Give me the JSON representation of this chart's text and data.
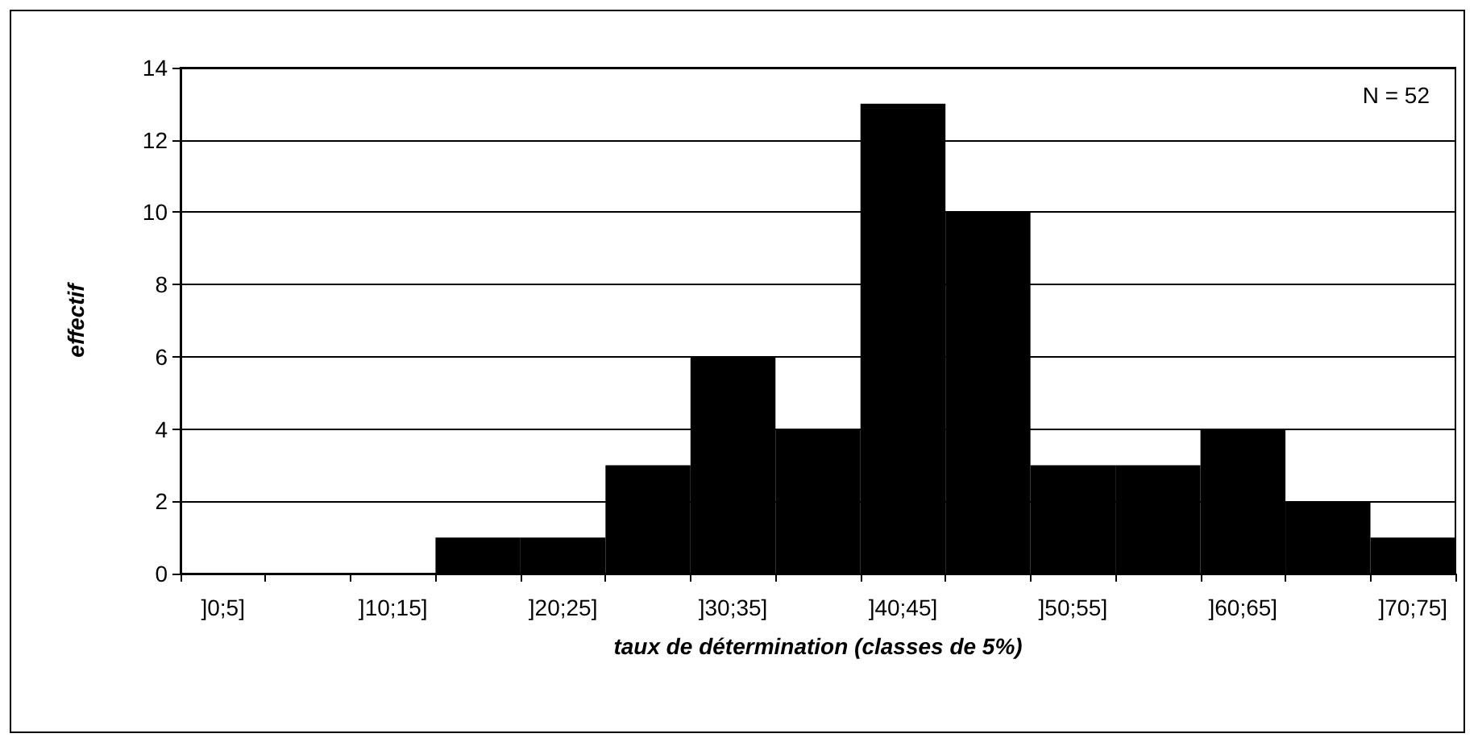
{
  "chart_data": {
    "type": "bar",
    "xlabel": "taux de détermination (classes de 5%)",
    "ylabel": "effectif",
    "categories": [
      "]0;5]",
      null,
      "]10;15]",
      null,
      "]20;25]",
      null,
      "]30;35]",
      null,
      "]40;45]",
      null,
      "]50;55]",
      null,
      "]60;65]",
      null,
      "]70;75]"
    ],
    "values": [
      0,
      0,
      0,
      1,
      1,
      3,
      6,
      4,
      13,
      10,
      3,
      3,
      4,
      2,
      1
    ],
    "color": "#000000",
    "ylim": [
      0,
      14
    ],
    "yticks": [
      0,
      2,
      4,
      6,
      8,
      10,
      12,
      14
    ],
    "grid": "y",
    "annotations": [
      "N = 52"
    ]
  }
}
